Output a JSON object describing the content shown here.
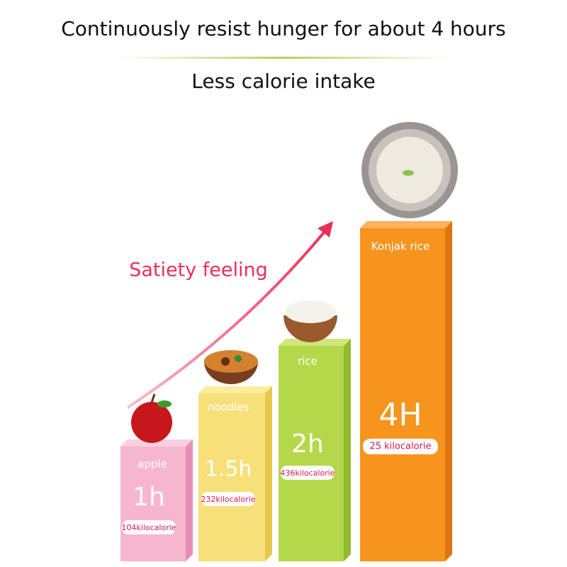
{
  "header": {
    "title": "Continuously resist hunger for about 4 hours",
    "subtitle": "Less calorie intake"
  },
  "arrow_label": "Satiety feeling",
  "items": [
    {
      "name": "apple",
      "duration": "1h",
      "calories": "104kilocalorie"
    },
    {
      "name": "noodles",
      "duration": "1.5h",
      "calories": "232kilocalorie"
    },
    {
      "name": "rice",
      "duration": "2h",
      "calories": "436kilocalorie"
    },
    {
      "name": "Konjak rice",
      "duration": "4H",
      "calories": "25 kilocalorie"
    }
  ]
}
